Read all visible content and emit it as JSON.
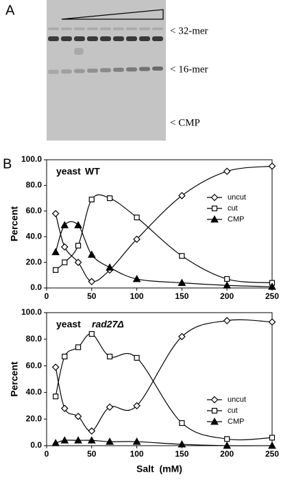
{
  "panel_labels": [
    "A",
    "B"
  ],
  "gel": {
    "labels": [
      "< 32-mer",
      "< 16-mer",
      "< CMP"
    ]
  },
  "chart_data": [
    {
      "type": "line",
      "title": "yeast",
      "subtitle": "WT",
      "ylabel": "Percent",
      "x": [
        10,
        20,
        35,
        50,
        70,
        100,
        150,
        200,
        250
      ],
      "xlim": [
        0,
        250
      ],
      "xticks": [
        0,
        50,
        100,
        150,
        200,
        250
      ],
      "ylim": [
        0,
        100
      ],
      "yticks": [
        {
          "value": 0,
          "label": "0.0"
        },
        {
          "value": 20,
          "label": "20.0"
        },
        {
          "value": 40,
          "label": "40.0"
        },
        {
          "value": 60,
          "label": "60.0"
        },
        {
          "value": 80,
          "label": "80.0"
        },
        {
          "value": 100,
          "label": "100.0"
        }
      ],
      "series": [
        {
          "name": "uncut",
          "color": "#000000",
          "marker": "diamond",
          "values": [
            58,
            32,
            20,
            5,
            14,
            38,
            72,
            91,
            95
          ]
        },
        {
          "name": "cut",
          "color": "#000000",
          "marker": "square",
          "values": [
            14,
            20,
            33,
            69,
            70,
            55,
            25,
            7,
            4
          ]
        },
        {
          "name": "CMP",
          "color": "#000000",
          "marker": "triangle",
          "values": [
            28,
            49,
            49,
            26,
            16,
            7,
            4,
            2,
            1
          ]
        }
      ]
    },
    {
      "type": "line",
      "title": "yeast",
      "subtitle": "rad27Δ",
      "ylabel": "Percent",
      "xlabel": "Salt  (mM)",
      "x": [
        10,
        20,
        35,
        50,
        70,
        100,
        150,
        200,
        250
      ],
      "xlim": [
        0,
        250
      ],
      "xticks": [
        0,
        50,
        100,
        150,
        200,
        250
      ],
      "ylim": [
        0,
        100
      ],
      "yticks": [
        {
          "value": 0,
          "label": "0.0"
        },
        {
          "value": 20,
          "label": "20.0"
        },
        {
          "value": 40,
          "label": "40.0"
        },
        {
          "value": 60,
          "label": "60.0"
        },
        {
          "value": 80,
          "label": "80.0"
        },
        {
          "value": 100,
          "label": "100.0"
        }
      ],
      "series": [
        {
          "name": "uncut",
          "color": "#000000",
          "marker": "diamond",
          "values": [
            59,
            28,
            22,
            11,
            29,
            30,
            82,
            94,
            93
          ]
        },
        {
          "name": "cut",
          "color": "#000000",
          "marker": "square",
          "values": [
            37,
            67,
            74,
            84,
            67,
            66,
            17,
            5,
            6
          ]
        },
        {
          "name": "CMP",
          "color": "#000000",
          "marker": "triangle",
          "values": [
            2,
            4,
            4,
            4,
            3,
            3,
            1,
            0,
            0
          ]
        }
      ]
    }
  ]
}
